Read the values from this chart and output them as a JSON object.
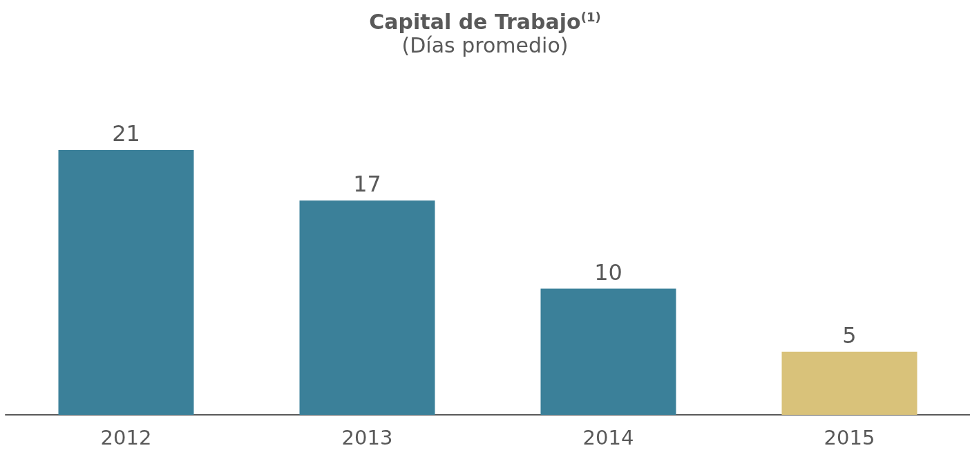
{
  "chart_data": {
    "type": "bar",
    "title": "Capital de Trabajo$^{(1)}$",
    "subtitle": "(Días promedio)",
    "categories": [
      "2012",
      "2013",
      "2014",
      "2015"
    ],
    "values": [
      21,
      17,
      10,
      5
    ],
    "colors": [
      "#3b8099",
      "#3b8099",
      "#3b8099",
      "#d9c27a"
    ],
    "data_labels": true
  }
}
